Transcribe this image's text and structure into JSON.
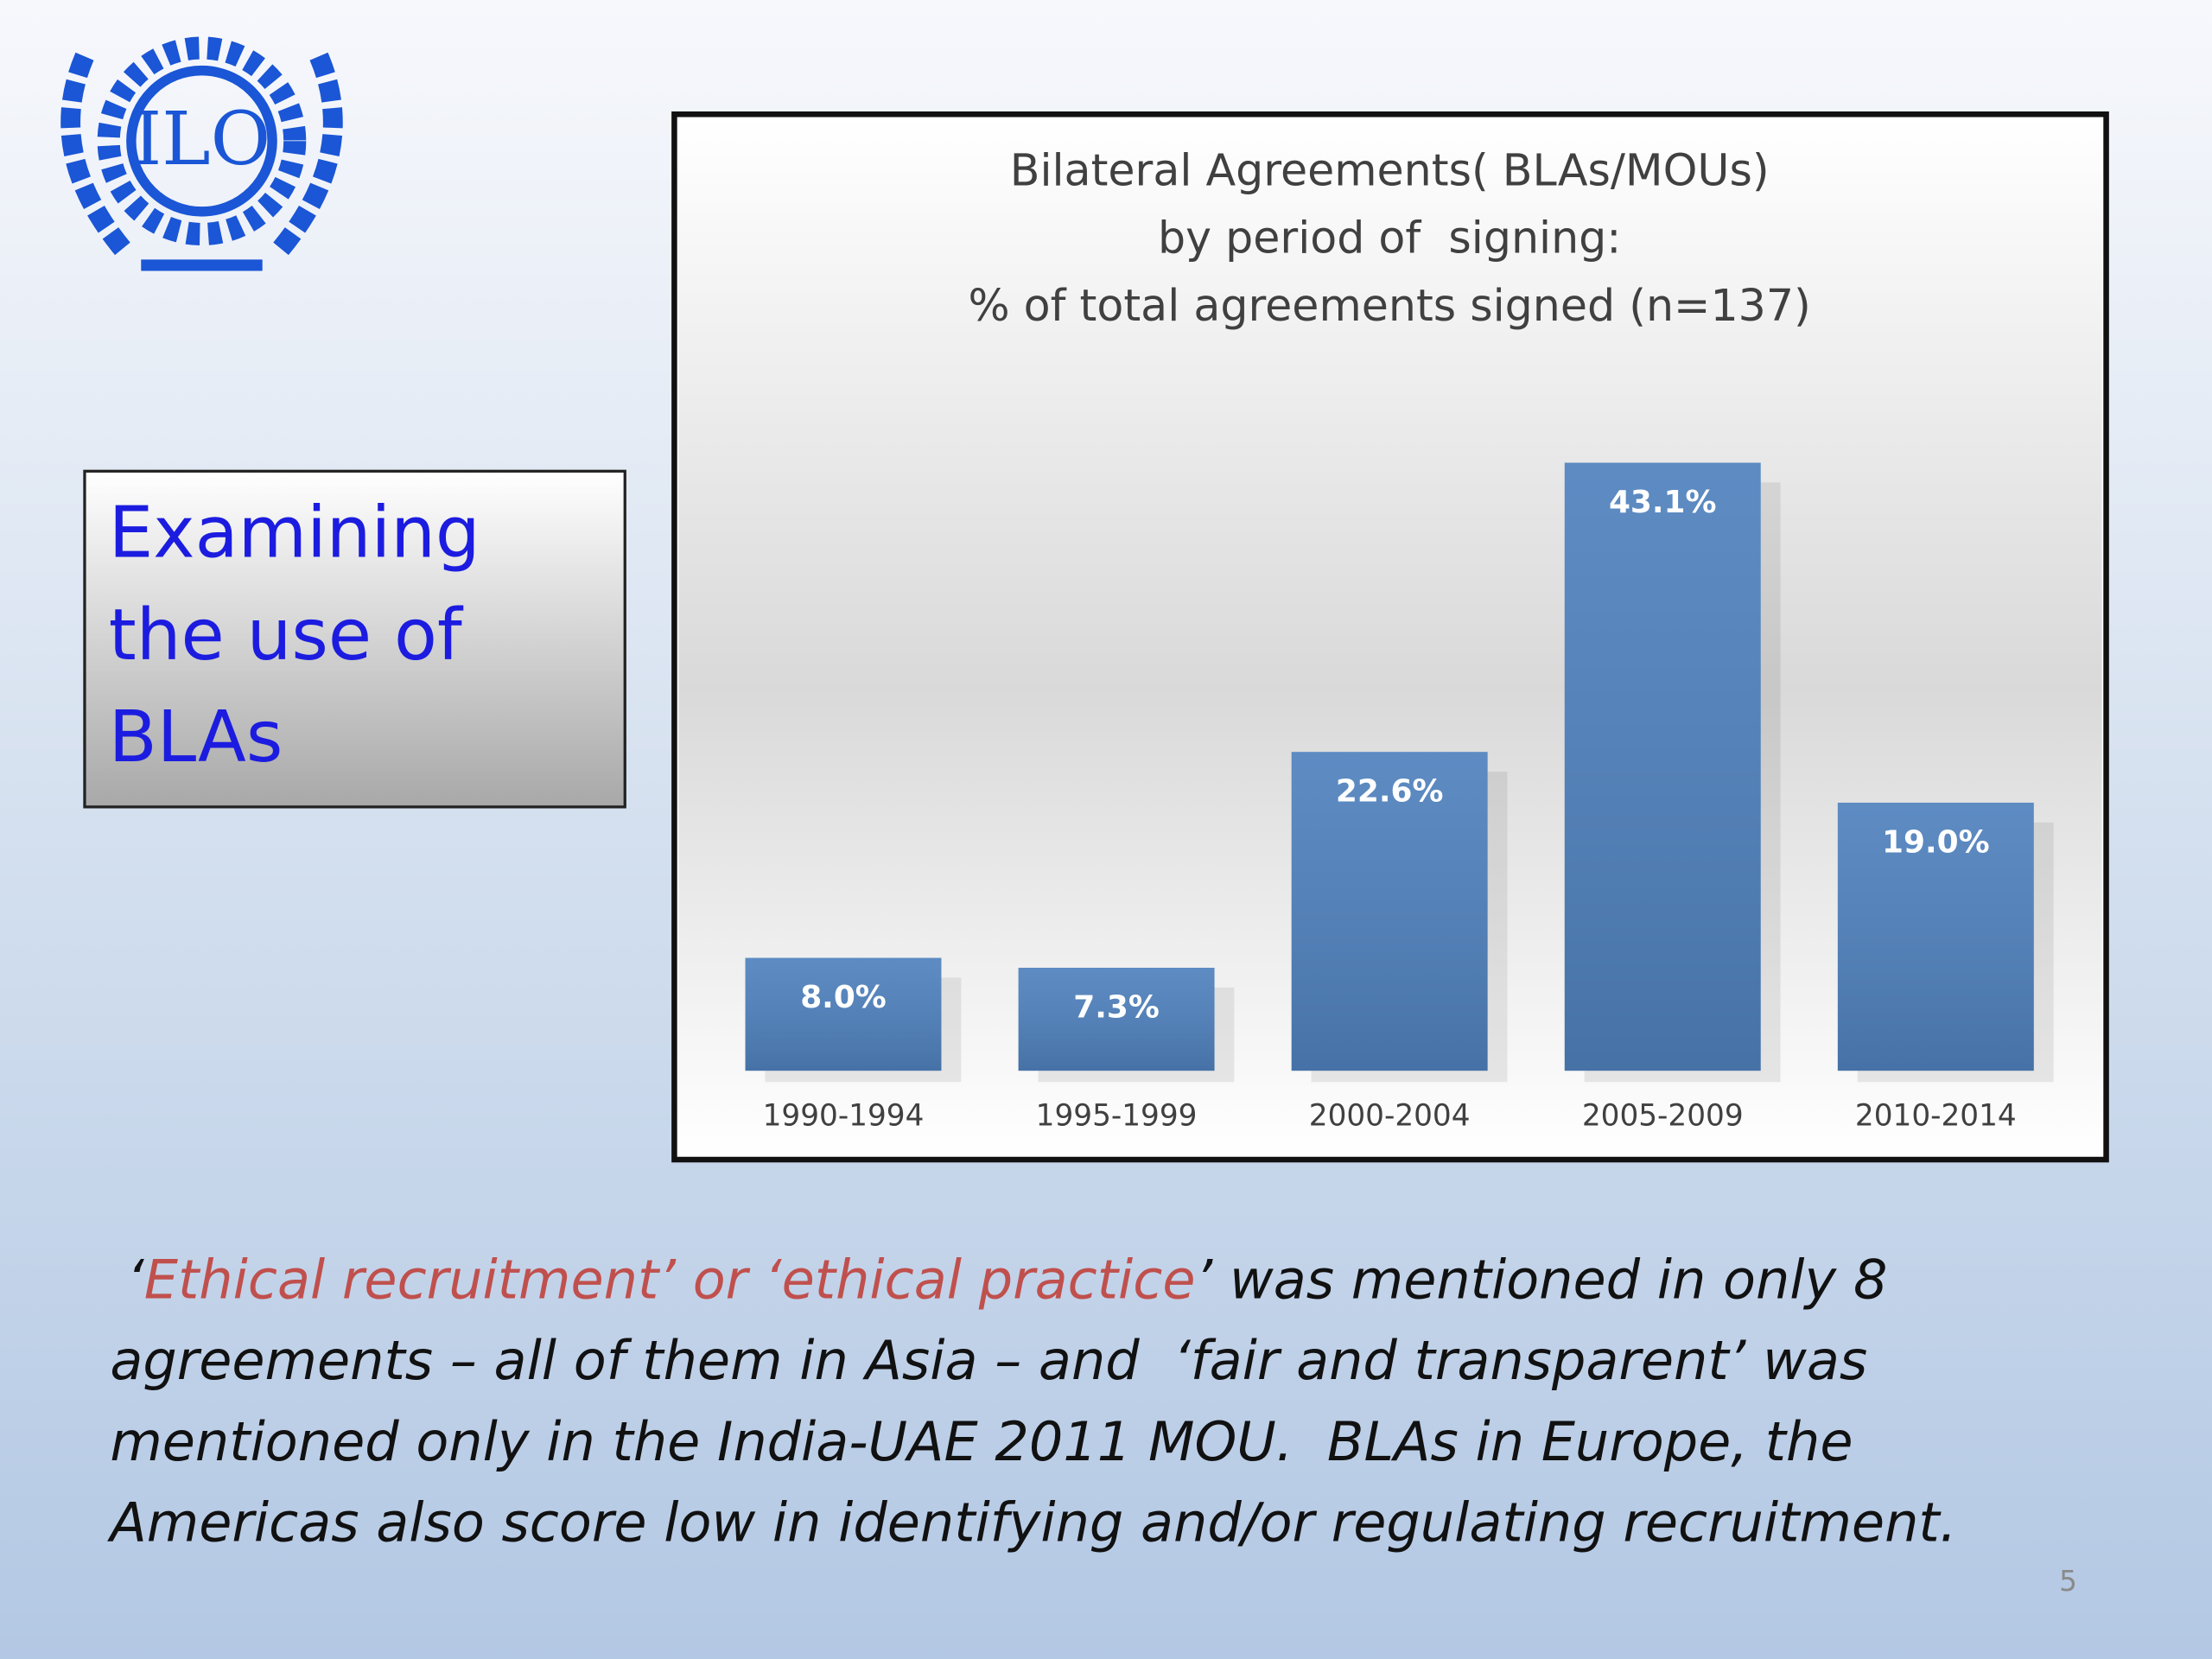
{
  "logo": {
    "text": "ILO"
  },
  "side_box": {
    "lines": [
      "Examining",
      "the use of",
      "BLAs"
    ]
  },
  "chart_data": {
    "type": "bar",
    "title": [
      "Bilateral Agreements( BLAs/MOUs)",
      "by period of  signing:",
      "% of total agreements signed (n=137)"
    ],
    "categories": [
      "1990-1994",
      "1995-1999",
      "2000-2004",
      "2005-2009",
      "2010-2014"
    ],
    "values": [
      8.0,
      7.3,
      22.6,
      43.1,
      19.0
    ],
    "value_labels": [
      "8.0%",
      "7.3%",
      "22.6%",
      "43.1%",
      "19.0%"
    ],
    "color": "#4f81bd"
  },
  "body": {
    "lines": [
      [
        {
          "text": " ‘",
          "color": "#111111"
        },
        {
          "text": "Ethical recruitment’ or ‘ethical practice",
          "color": "#c0504d"
        },
        {
          "text": "’ was mentioned in only 8",
          "color": "#111111"
        }
      ],
      [
        {
          "text": "agreements – all of them in Asia – and  ‘fair and transparent’ was",
          "color": "#111111"
        }
      ],
      [
        {
          "text": "mentioned only in the India-UAE 2011 MOU.  BLAs in Europe, the",
          "color": "#111111"
        }
      ],
      [
        {
          "text": "Americas also score low in identifying and/or regulating recruitment.",
          "color": "#111111"
        }
      ]
    ]
  },
  "page_number": "5"
}
